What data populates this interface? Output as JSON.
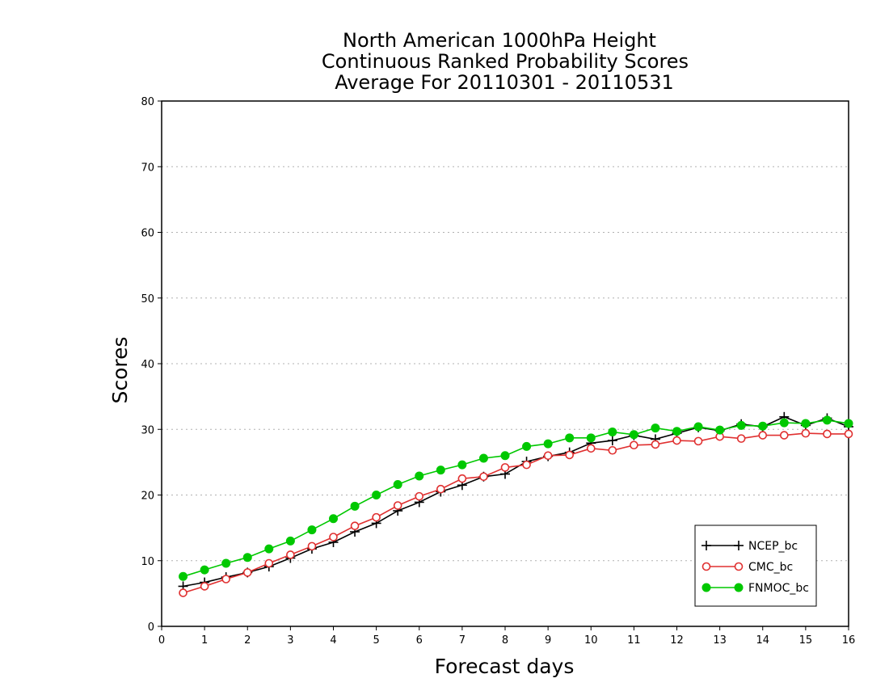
{
  "chart_data": {
    "type": "line",
    "title": [
      "North American 1000hPa Height",
      "Continuous Ranked Probability Scores",
      "Average For 20110301 - 20110531"
    ],
    "xlabel": "Forecast days",
    "ylabel": "Scores",
    "xlim": [
      0,
      16
    ],
    "ylim": [
      0,
      80
    ],
    "xticks": [
      "0",
      "1",
      "2",
      "3",
      "4",
      "5",
      "6",
      "7",
      "8",
      "9",
      "10",
      "11",
      "12",
      "13",
      "14",
      "15",
      "16"
    ],
    "yticks": [
      "0",
      "10",
      "20",
      "30",
      "40",
      "50",
      "60",
      "70",
      "80"
    ],
    "grid": "horizontal dotted",
    "legend_position": "bottom-right",
    "x": [
      0.5,
      1,
      1.5,
      2,
      2.5,
      3,
      3.5,
      4,
      4.5,
      5,
      5.5,
      6,
      6.5,
      7,
      7.5,
      8,
      8.5,
      9,
      9.5,
      10,
      10.5,
      11,
      11.5,
      12,
      12.5,
      13,
      13.5,
      14,
      14.5,
      15,
      15.5,
      16
    ],
    "series": [
      {
        "name": "NCEP_bc",
        "color": "#000000",
        "marker": "plus",
        "values": [
          6.1,
          6.7,
          7.5,
          8.2,
          9.1,
          10.4,
          11.8,
          12.8,
          14.4,
          15.7,
          17.6,
          18.9,
          20.5,
          21.5,
          22.8,
          23.2,
          25.1,
          25.9,
          26.5,
          27.9,
          28.3,
          29.1,
          28.5,
          29.4,
          30.3,
          29.8,
          30.8,
          30.4,
          31.9,
          30.6,
          31.7,
          30.4
        ]
      },
      {
        "name": "CMC_bc",
        "color": "#e03030",
        "marker": "open-circle",
        "values": [
          5.1,
          6.1,
          7.2,
          8.2,
          9.6,
          10.9,
          12.2,
          13.6,
          15.3,
          16.6,
          18.4,
          19.8,
          20.9,
          22.5,
          22.8,
          24.2,
          24.6,
          26.0,
          26.1,
          27.1,
          26.8,
          27.6,
          27.7,
          28.3,
          28.2,
          28.9,
          28.6,
          29.1,
          29.1,
          29.4,
          29.3,
          29.3
        ]
      },
      {
        "name": "FNMOC_bc",
        "color": "#00c800",
        "marker": "filled-circle",
        "values": [
          7.6,
          8.6,
          9.6,
          10.5,
          11.8,
          13.0,
          14.7,
          16.4,
          18.3,
          20.0,
          21.6,
          22.9,
          23.8,
          24.6,
          25.6,
          26.0,
          27.4,
          27.8,
          28.7,
          28.7,
          29.6,
          29.2,
          30.2,
          29.7,
          30.4,
          29.9,
          30.6,
          30.5,
          31.0,
          30.9,
          31.4,
          30.9
        ]
      }
    ]
  }
}
